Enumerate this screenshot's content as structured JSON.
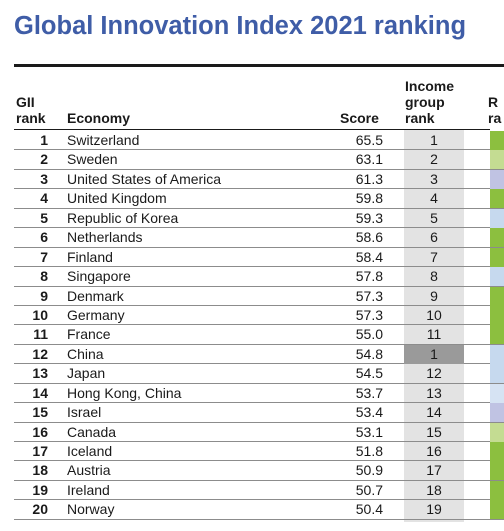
{
  "title": "Global Innovation Index 2021 ranking",
  "headers": {
    "gii_rank": [
      "GII",
      "rank"
    ],
    "economy": "Economy",
    "score": "Score",
    "income_group_rank": [
      "Income",
      "group",
      "rank"
    ],
    "region": [
      "R",
      "ra"
    ]
  },
  "colors": {
    "title": "#3f5da7",
    "income_column_bg": "#e3e3e3",
    "highlight_cell": "#9a9a9a",
    "region_europe": "#8cbf3f",
    "region_europe_light": "#c4dc92",
    "region_asia": "#c6d9ee",
    "region_asia_light": "#d6e3f3",
    "region_northern_america": "#c0c3e3"
  },
  "rows": [
    {
      "rank": "1",
      "economy": "Switzerland",
      "score": "65.5",
      "income_rank": "1",
      "highlight": false,
      "region_color": "#8cbf3f"
    },
    {
      "rank": "2",
      "economy": "Sweden",
      "score": "63.1",
      "income_rank": "2",
      "highlight": false,
      "region_color": "#c4dc92"
    },
    {
      "rank": "3",
      "economy": "United States of America",
      "score": "61.3",
      "income_rank": "3",
      "highlight": false,
      "region_color": "#c0c3e3"
    },
    {
      "rank": "4",
      "economy": "United Kingdom",
      "score": "59.8",
      "income_rank": "4",
      "highlight": false,
      "region_color": "#8cbf3f"
    },
    {
      "rank": "5",
      "economy": "Republic of Korea",
      "score": "59.3",
      "income_rank": "5",
      "highlight": false,
      "region_color": "#c6d9ee"
    },
    {
      "rank": "6",
      "economy": "Netherlands",
      "score": "58.6",
      "income_rank": "6",
      "highlight": false,
      "region_color": "#8cbf3f"
    },
    {
      "rank": "7",
      "economy": "Finland",
      "score": "58.4",
      "income_rank": "7",
      "highlight": false,
      "region_color": "#8cbf3f"
    },
    {
      "rank": "8",
      "economy": "Singapore",
      "score": "57.8",
      "income_rank": "8",
      "highlight": false,
      "region_color": "#c6d9ee"
    },
    {
      "rank": "9",
      "economy": "Denmark",
      "score": "57.3",
      "income_rank": "9",
      "highlight": false,
      "region_color": "#8cbf3f"
    },
    {
      "rank": "10",
      "economy": "Germany",
      "score": "57.3",
      "income_rank": "10",
      "highlight": false,
      "region_color": "#8cbf3f"
    },
    {
      "rank": "11",
      "economy": "France",
      "score": "55.0",
      "income_rank": "11",
      "highlight": false,
      "region_color": "#8cbf3f"
    },
    {
      "rank": "12",
      "economy": "China",
      "score": "54.8",
      "income_rank": "1",
      "highlight": true,
      "region_color": "#c6d9ee"
    },
    {
      "rank": "13",
      "economy": "Japan",
      "score": "54.5",
      "income_rank": "12",
      "highlight": false,
      "region_color": "#c6d9ee"
    },
    {
      "rank": "14",
      "economy": "Hong Kong, China",
      "score": "53.7",
      "income_rank": "13",
      "highlight": false,
      "region_color": "#d6e3f3"
    },
    {
      "rank": "15",
      "economy": "Israel",
      "score": "53.4",
      "income_rank": "14",
      "highlight": false,
      "region_color": "#c0c3e3"
    },
    {
      "rank": "16",
      "economy": "Canada",
      "score": "53.1",
      "income_rank": "15",
      "highlight": false,
      "region_color": "#c4dc92"
    },
    {
      "rank": "17",
      "economy": "Iceland",
      "score": "51.8",
      "income_rank": "16",
      "highlight": false,
      "region_color": "#8cbf3f"
    },
    {
      "rank": "18",
      "economy": "Austria",
      "score": "50.9",
      "income_rank": "17",
      "highlight": false,
      "region_color": "#8cbf3f"
    },
    {
      "rank": "19",
      "economy": "Ireland",
      "score": "50.7",
      "income_rank": "18",
      "highlight": false,
      "region_color": "#8cbf3f"
    },
    {
      "rank": "20",
      "economy": "Norway",
      "score": "50.4",
      "income_rank": "19",
      "highlight": false,
      "region_color": "#8cbf3f"
    }
  ]
}
